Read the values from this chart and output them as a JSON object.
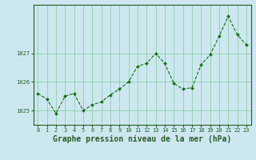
{
  "x": [
    0,
    1,
    2,
    3,
    4,
    5,
    6,
    7,
    8,
    9,
    10,
    11,
    12,
    13,
    14,
    15,
    16,
    17,
    18,
    19,
    20,
    21,
    22,
    23
  ],
  "y": [
    1025.6,
    1025.4,
    1024.9,
    1025.5,
    1025.6,
    1025.0,
    1025.2,
    1025.3,
    1025.55,
    1025.75,
    1026.0,
    1026.55,
    1026.65,
    1027.0,
    1026.65,
    1025.95,
    1025.75,
    1025.8,
    1026.6,
    1026.95,
    1027.6,
    1028.3,
    1027.65,
    1027.3
  ],
  "line_color": "#1a6b1a",
  "marker_color": "#1a6b1a",
  "background_color": "#cce8ee",
  "grid_color": "#88c8a0",
  "axis_color": "#2a5a2a",
  "xlabel": "Graphe pression niveau de la mer (hPa)",
  "ylim": [
    1024.5,
    1028.7
  ],
  "yticks": [
    1025,
    1026,
    1027
  ],
  "xlim": [
    -0.5,
    23.5
  ],
  "xticks": [
    0,
    1,
    2,
    3,
    4,
    5,
    6,
    7,
    8,
    9,
    10,
    11,
    12,
    13,
    14,
    15,
    16,
    17,
    18,
    19,
    20,
    21,
    22,
    23
  ],
  "tick_fontsize": 5.0,
  "xlabel_fontsize": 7.0
}
